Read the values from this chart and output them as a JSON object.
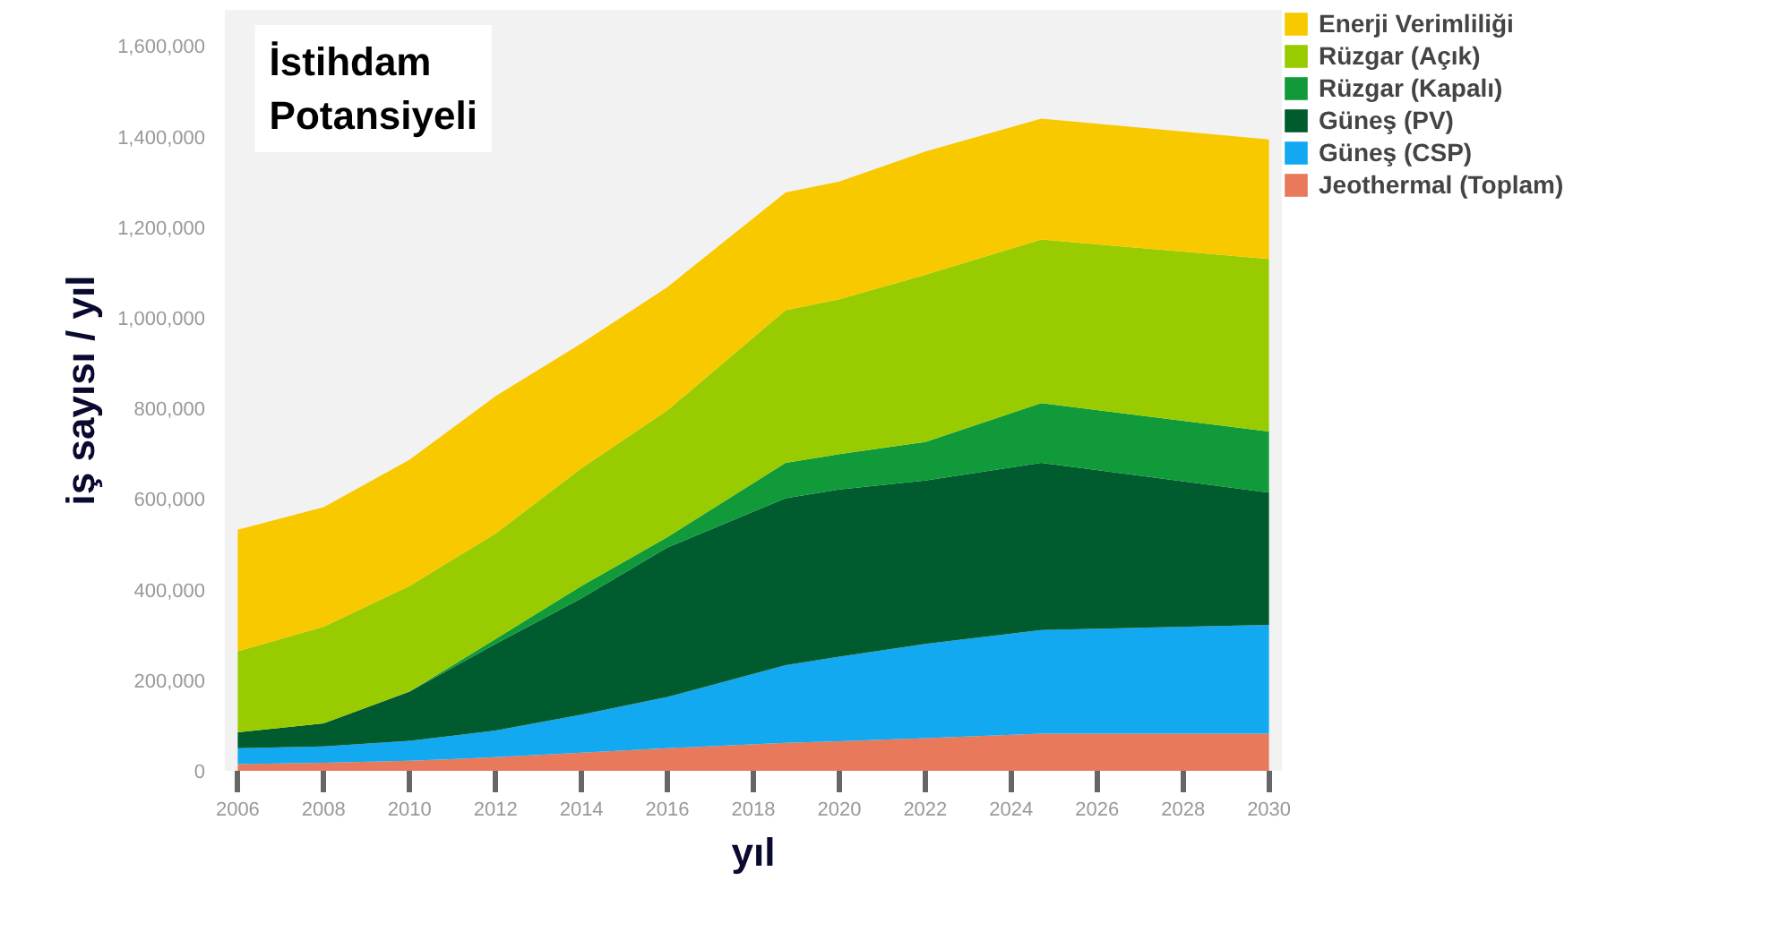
{
  "chart_data": {
    "type": "area",
    "stacked": true,
    "title": "İstihdam Potansiyeli",
    "xlabel": "yıl",
    "ylabel": "iş sayısı / yıl",
    "x": [
      2006,
      2008,
      2010,
      2012,
      2014,
      2016,
      2018.75,
      2020,
      2022,
      2024.7,
      2030
    ],
    "series": [
      {
        "name": "Jeothermal (Toplam)",
        "color": "#e8795a",
        "values": [
          15000,
          18000,
          22000,
          30000,
          40000,
          50000,
          62000,
          65000,
          72000,
          82000,
          82000
        ]
      },
      {
        "name": "Güneş (CSP)",
        "color": "#12a9f0",
        "values": [
          35000,
          36000,
          44000,
          59000,
          84000,
          113000,
          171000,
          187000,
          208000,
          229000,
          240000
        ]
      },
      {
        "name": "Güneş (PV)",
        "color": "#005c2e",
        "values": [
          35000,
          51000,
          109000,
          191000,
          257000,
          330000,
          369000,
          369000,
          361000,
          369000,
          292000
        ]
      },
      {
        "name": "Rüzgar (Kapalı)",
        "color": "#109a3a",
        "values": [
          0,
          0,
          0,
          11000,
          27000,
          23000,
          78000,
          78000,
          85000,
          132000,
          135000
        ]
      },
      {
        "name": "Rüzgar (Açık)",
        "color": "#99cc00",
        "values": [
          179000,
          213000,
          233000,
          233000,
          260000,
          280000,
          337000,
          342000,
          369000,
          361000,
          381000
        ]
      },
      {
        "name": "Enerji Verimliliği",
        "color": "#f9c900",
        "values": [
          268000,
          264000,
          279000,
          303000,
          276000,
          272000,
          260000,
          260000,
          272000,
          267000,
          264000
        ]
      }
    ],
    "xlim": [
      2005.7,
      2030.3
    ],
    "ylim": [
      0,
      1680000
    ],
    "xticks": [
      2006,
      2008,
      2010,
      2012,
      2014,
      2016,
      2018,
      2020,
      2022,
      2024,
      2026,
      2028,
      2030
    ],
    "yticks": [
      0,
      {
        "value": 200000,
        "label": "200,000"
      },
      {
        "value": 400000,
        "label": "400,000"
      },
      {
        "value": 600000,
        "label": "600,000"
      },
      {
        "value": 800000,
        "label": "800,000"
      },
      {
        "value": 1000000,
        "label": "1,000,000"
      },
      {
        "value": 1200000,
        "label": "1,200,000"
      },
      {
        "value": 1400000,
        "label": "1,400,000"
      },
      {
        "value": 1600000,
        "label": "1,600,000"
      }
    ],
    "grid": false,
    "legend": "top right"
  }
}
